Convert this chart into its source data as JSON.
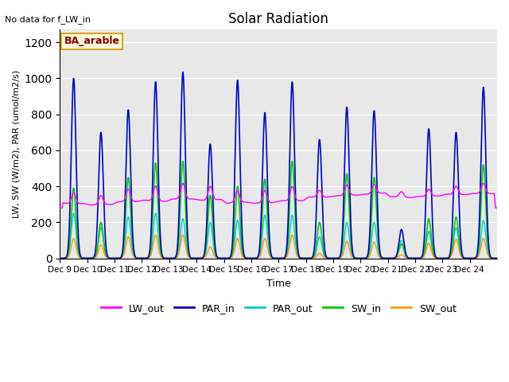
{
  "title": "Solar Radiation",
  "note": "No data for f_LW_in",
  "site_label": "BA_arable",
  "ylabel": "LW, SW (W/m2), PAR (umol/m2/s)",
  "xlabel": "Time",
  "ylim": [
    0,
    1270
  ],
  "yticks": [
    0,
    200,
    400,
    600,
    800,
    1000,
    1200
  ],
  "xtick_labels": [
    "Dec 9",
    "Dec 10",
    "Dec 11",
    "Dec 12",
    "Dec 13",
    "Dec 14",
    "Dec 15",
    "Dec 16",
    "Dec 17",
    "Dec 18",
    "Dec 19",
    "Dec 20",
    "Dec 21",
    "Dec 22",
    "Dec 23",
    "Dec 24"
  ],
  "colors": {
    "LW_out": "#ff00ff",
    "PAR_in": "#0000cc",
    "PAR_out": "#00cccc",
    "SW_in": "#00cc00",
    "SW_out": "#ff9900"
  },
  "bg_color": "#e8e8e8",
  "par_in_peaks": [
    1000,
    700,
    825,
    980,
    1035,
    635,
    990,
    810,
    980,
    660,
    840,
    820,
    160,
    720,
    700,
    950
  ],
  "sw_in_peaks": [
    390,
    200,
    450,
    530,
    540,
    350,
    400,
    440,
    540,
    200,
    470,
    450,
    80,
    220,
    230,
    520
  ],
  "sw_out_peaks": [
    110,
    75,
    120,
    130,
    130,
    65,
    110,
    110,
    130,
    28,
    95,
    90,
    20,
    85,
    105,
    110
  ],
  "par_out_peaks": [
    250,
    170,
    230,
    250,
    220,
    200,
    210,
    240,
    240,
    120,
    200,
    200,
    100,
    150,
    170,
    210
  ],
  "lw_base_vals": [
    305,
    298,
    315,
    320,
    330,
    325,
    310,
    308,
    320,
    340,
    350,
    360,
    340,
    345,
    355,
    360
  ],
  "lw_bump_peaks": [
    60,
    50,
    70,
    80,
    85,
    75,
    65,
    70,
    80,
    40,
    55,
    50,
    30,
    40,
    45,
    55
  ]
}
